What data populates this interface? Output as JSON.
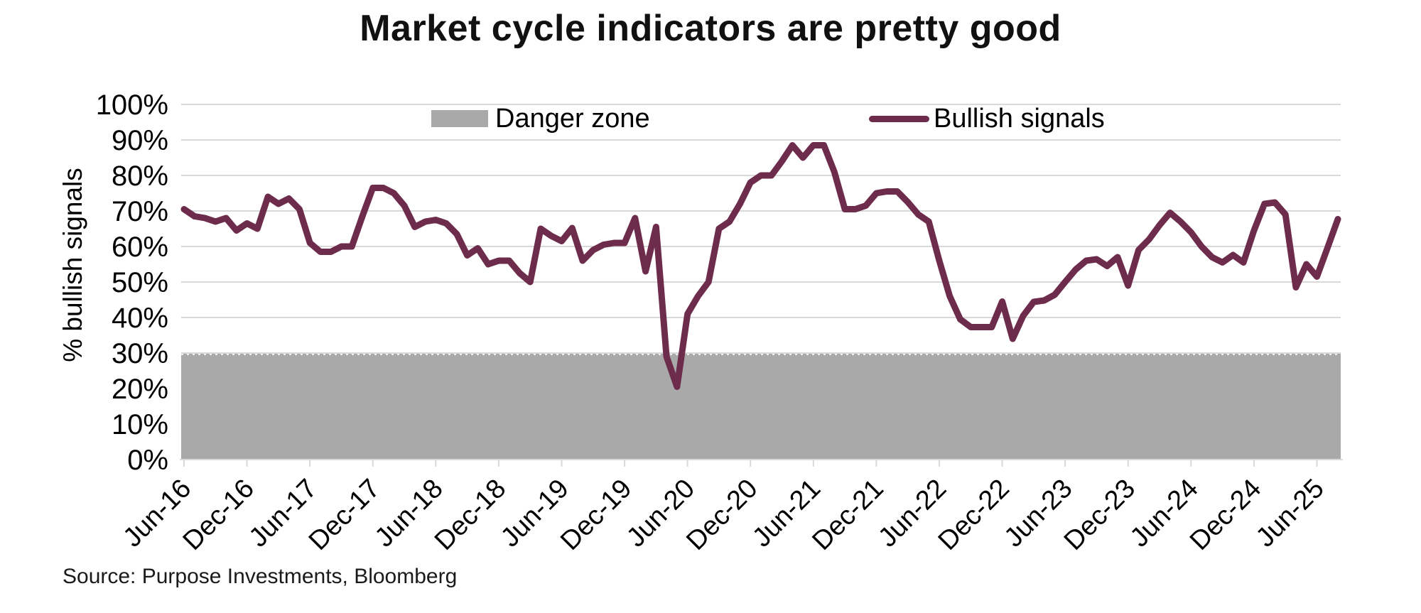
{
  "title": "Market cycle indicators are pretty good",
  "source_note": "Source: Purpose Investments, Bloomberg",
  "y_axis_title": "% bullish signals",
  "legend": {
    "danger_label": "Danger zone",
    "bullish_label": "Bullish signals"
  },
  "colors": {
    "line": "#6e2c4c",
    "danger_zone": "#a9a9a9",
    "gridline": "#d9d9d9",
    "text": "#000000"
  },
  "chart_data": {
    "type": "line",
    "title": "Market cycle indicators are pretty good",
    "xlabel": "",
    "ylabel": "% bullish signals",
    "ylim": [
      0,
      100
    ],
    "grid": true,
    "legend_position": "top-inside",
    "y_tick_labels": [
      "0%",
      "10%",
      "20%",
      "30%",
      "40%",
      "50%",
      "60%",
      "70%",
      "80%",
      "90%",
      "100%"
    ],
    "x_tick_labels": [
      "Jun-16",
      "Dec-16",
      "Jun-17",
      "Dec-17",
      "Jun-18",
      "Dec-18",
      "Jun-19",
      "Dec-19",
      "Jun-20",
      "Dec-20",
      "Jun-21",
      "Dec-21",
      "Jun-22",
      "Dec-22",
      "Jun-23",
      "Dec-23",
      "Jun-24",
      "Dec-24",
      "Jun-25"
    ],
    "danger_zone": {
      "label": "Danger zone",
      "from_pct": 0,
      "to_pct": 30
    },
    "series": [
      {
        "name": "Bullish signals",
        "start": "Jun-2016",
        "frequency": "monthly",
        "unit": "% bullish signals",
        "values": [
          70.5,
          68.5,
          68,
          67,
          68,
          64.5,
          66.5,
          65,
          74,
          72,
          73.5,
          70.5,
          61,
          58.5,
          58.5,
          60,
          60,
          68.5,
          76.5,
          76.5,
          75,
          71.5,
          65.5,
          67,
          67.5,
          66.5,
          63.5,
          57.5,
          59.5,
          55,
          56,
          56,
          52.5,
          50,
          65,
          63,
          61.5,
          65.2,
          56,
          59,
          60.5,
          61,
          61,
          68,
          53,
          65.5,
          29,
          20.5,
          41,
          46,
          50,
          65,
          67,
          72,
          78,
          80,
          80,
          84,
          88.5,
          85,
          88.5,
          88.5,
          81,
          70.5,
          70.5,
          71.5,
          75,
          75.5,
          75.5,
          72.5,
          69,
          67,
          56,
          46,
          39.5,
          37.3,
          37.3,
          37.3,
          44.5,
          34,
          40.5,
          44.4,
          44.8,
          46.4,
          50,
          53.5,
          56,
          56.4,
          54.5,
          57,
          49,
          59,
          62,
          66,
          69.5,
          67,
          64,
          60,
          57,
          55.5,
          57.6,
          55.5,
          64.5,
          72,
          72.4,
          69,
          48.5,
          55,
          51.5,
          59.5,
          67.7
        ]
      }
    ]
  }
}
